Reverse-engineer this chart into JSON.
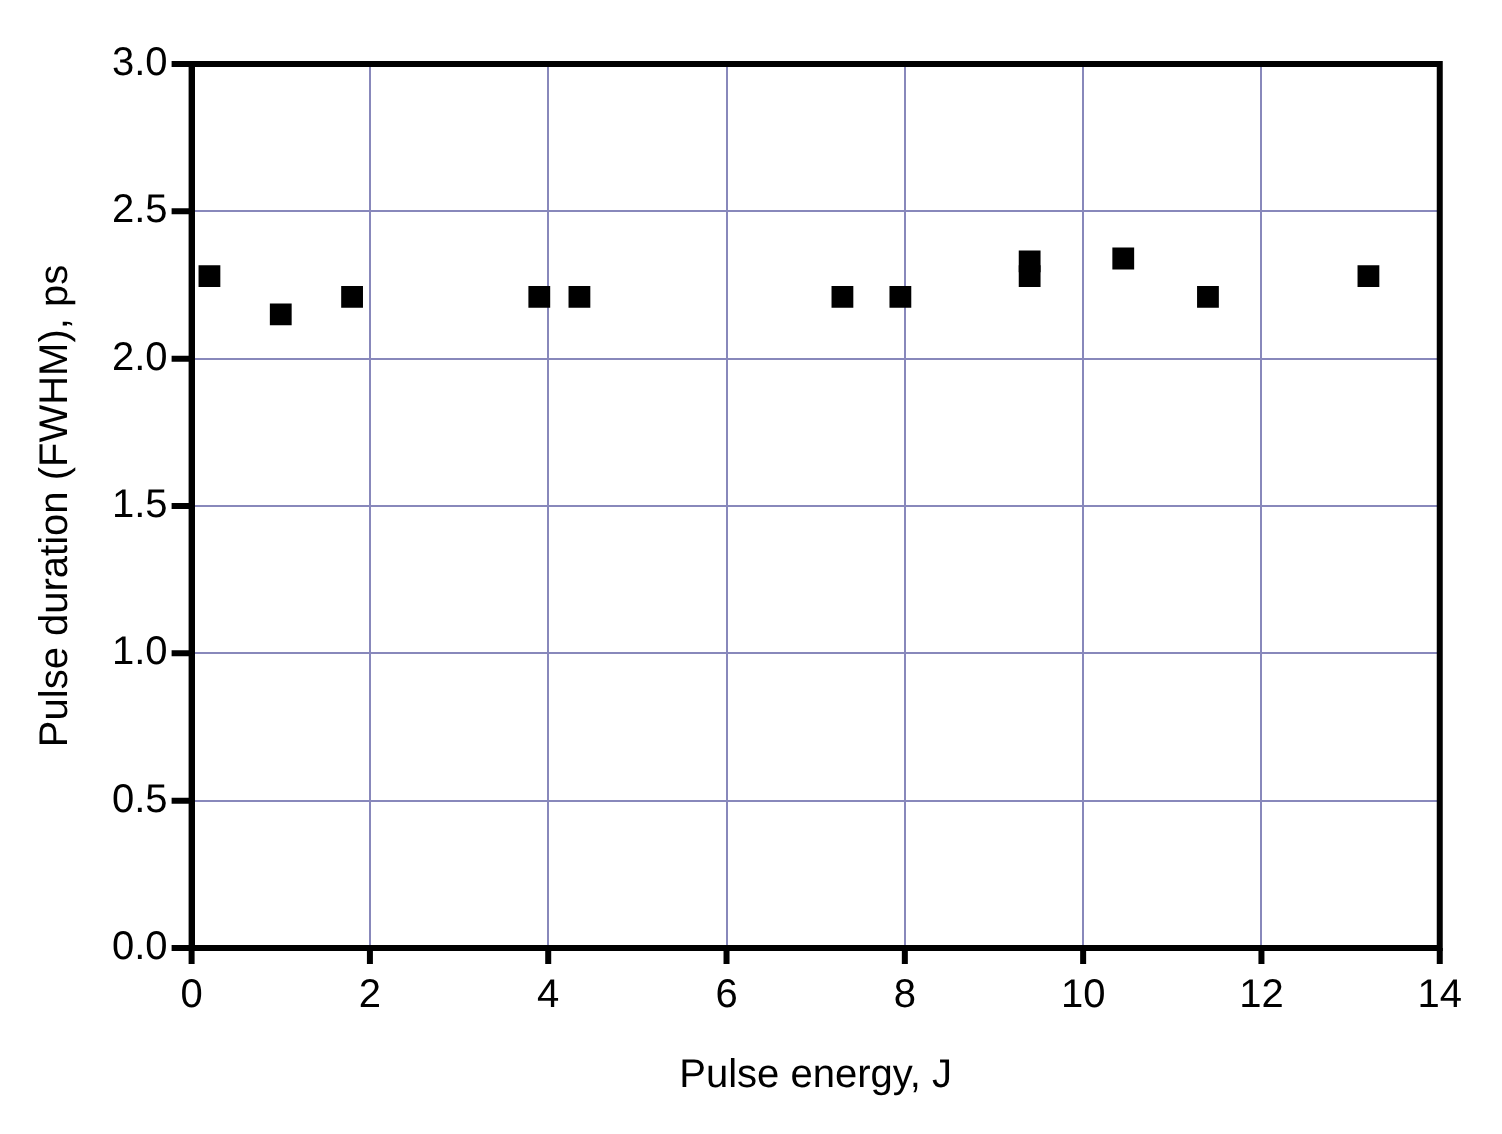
{
  "chart_data": {
    "type": "scatter",
    "xlabel": "Pulse energy, J",
    "ylabel": "Pulse duration (FWHM), ps",
    "x": [
      0.2,
      1.0,
      1.8,
      3.9,
      4.35,
      7.3,
      7.95,
      9.4,
      9.4,
      10.45,
      11.4,
      13.2
    ],
    "values": [
      2.28,
      2.15,
      2.21,
      2.21,
      2.21,
      2.21,
      2.21,
      2.33,
      2.28,
      2.34,
      2.21,
      2.28
    ],
    "color": "#000000",
    "marker": "square",
    "xlim": [
      0,
      14
    ],
    "xticks": [
      0,
      2,
      4,
      6,
      8,
      10,
      12,
      14
    ],
    "ylim": [
      0,
      3
    ],
    "yticks": [
      {
        "value": 0,
        "label": "0.0"
      },
      {
        "value": 0.5,
        "label": "0.5"
      },
      {
        "value": 1,
        "label": "1.0"
      },
      {
        "value": 1.5,
        "label": "1.5"
      },
      {
        "value": 2,
        "label": "2.0"
      },
      {
        "value": 2.5,
        "label": "2.5"
      },
      {
        "value": 3,
        "label": "3.0"
      }
    ],
    "grid": true
  }
}
